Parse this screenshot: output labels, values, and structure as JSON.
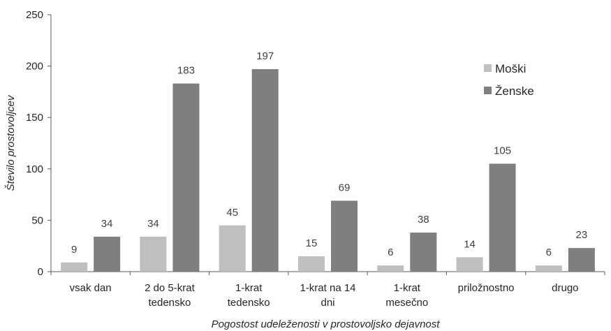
{
  "chart_data": {
    "type": "bar",
    "categories": [
      [
        "vsak dan"
      ],
      [
        "2 do 5-krat",
        "tedensko"
      ],
      [
        "1-krat",
        "tedensko"
      ],
      [
        "1-krat na 14",
        "dni"
      ],
      [
        "1-krat",
        "mesečno"
      ],
      [
        "priložnostno"
      ],
      [
        "drugo"
      ]
    ],
    "series": [
      {
        "name": "Moški",
        "color": "#bfbfbf",
        "values": [
          9,
          34,
          45,
          15,
          6,
          14,
          6
        ]
      },
      {
        "name": "Ženske",
        "color": "#7f7f7f",
        "values": [
          34,
          183,
          197,
          69,
          38,
          105,
          23
        ]
      }
    ],
    "xlabel": "Pogostost udeleženosti v prostovoljsko dejavnost",
    "ylabel": "Število prostovoljcev",
    "ylim": [
      0,
      250
    ],
    "yticks": [
      0,
      50,
      100,
      150,
      200,
      250
    ],
    "grid": false,
    "legend_position": "top-right",
    "data_labels": true
  }
}
